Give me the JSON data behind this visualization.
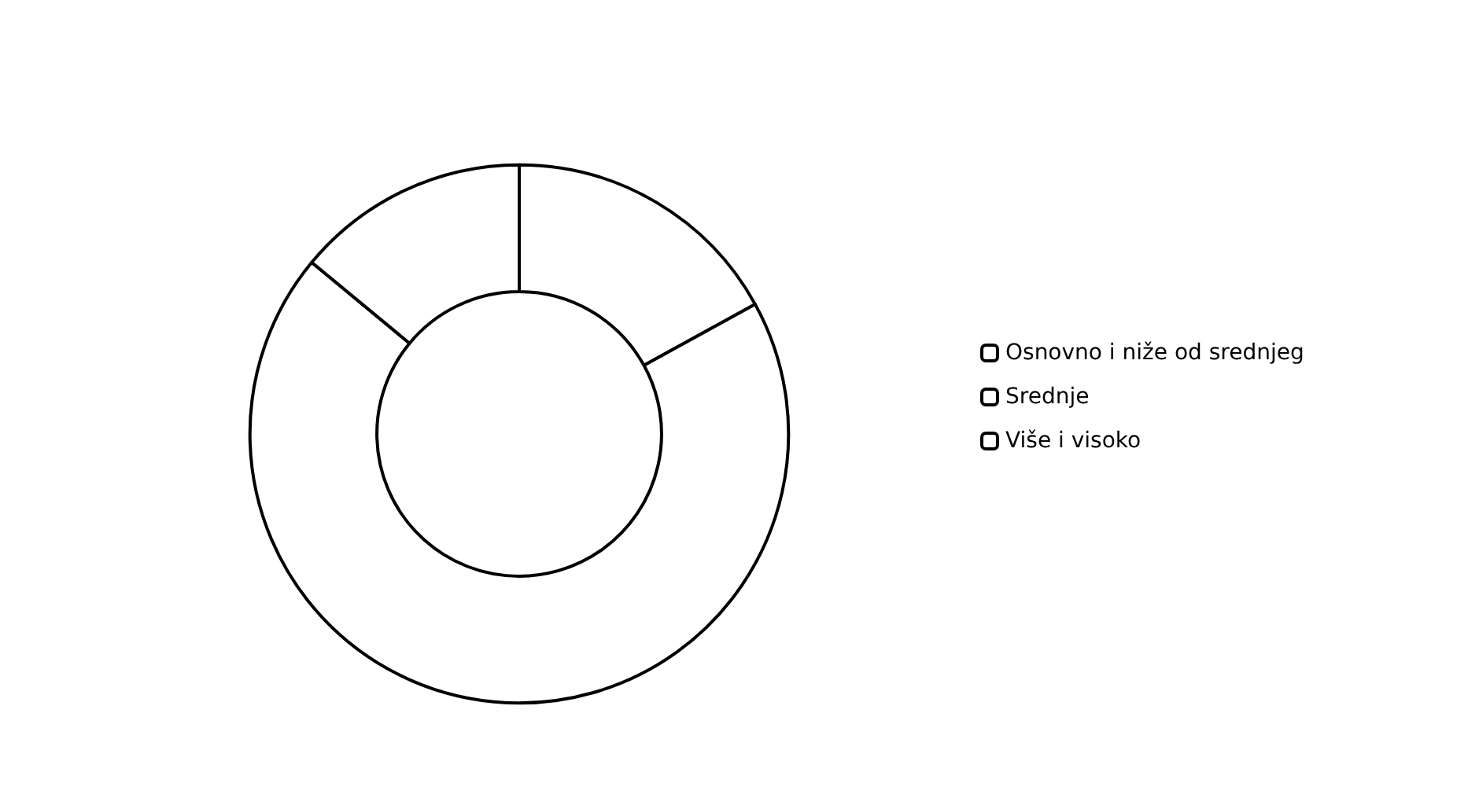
{
  "chart_data": {
    "type": "donut",
    "categories": [
      "Osnovno i niže od srednjeg",
      "Srednje",
      "Više i visoko"
    ],
    "values": [
      17,
      69,
      14
    ],
    "colors": [
      "#ffffff",
      "#ffffff",
      "#ffffff"
    ],
    "legend": "right"
  }
}
